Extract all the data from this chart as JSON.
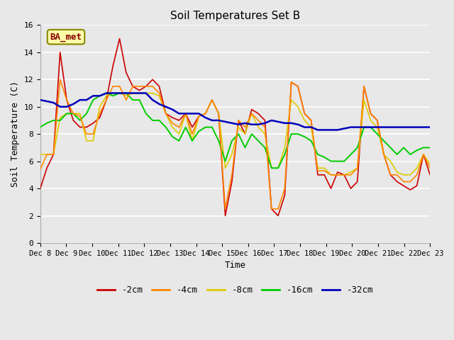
{
  "title": "Soil Temperatures Set B",
  "xlabel": "Time",
  "ylabel": "Soil Temperature (C)",
  "annotation": "BA_met",
  "ylim": [
    0,
    16
  ],
  "yticks": [
    0,
    2,
    4,
    6,
    8,
    10,
    12,
    14,
    16
  ],
  "bg_color": "#e8e8e8",
  "series": {
    "-2cm": {
      "color": "#cc0000",
      "lw": 1.2,
      "zorder": 3
    },
    "-4cm": {
      "color": "#ff8800",
      "lw": 1.2,
      "zorder": 4
    },
    "-8cm": {
      "color": "#ddcc00",
      "lw": 1.2,
      "zorder": 3
    },
    "-16cm": {
      "color": "#00cc00",
      "lw": 1.4,
      "zorder": 3
    },
    "-32cm": {
      "color": "#0000bb",
      "lw": 1.8,
      "zorder": 5
    }
  },
  "xtick_labels": [
    "Dec 8",
    "Dec 9",
    "Dec 10",
    "Dec 11",
    "Dec 12",
    "Dec 13",
    "Dec 14",
    "Dec 15",
    "Dec 16",
    "Dec 17",
    "Dec 18",
    "Dec 19",
    "Dec 20",
    "Dec 21",
    "Dec 22",
    "Dec 23"
  ],
  "data": {
    "-2cm": [
      4.0,
      5.5,
      6.5,
      14.0,
      10.5,
      9.0,
      8.5,
      8.5,
      8.8,
      9.2,
      10.5,
      13.0,
      15.0,
      12.5,
      11.5,
      11.2,
      11.5,
      12.0,
      11.5,
      9.5,
      9.2,
      9.0,
      9.5,
      8.5,
      9.3,
      9.5,
      10.5,
      9.5,
      2.0,
      4.5,
      9.0,
      8.0,
      9.8,
      9.5,
      9.0,
      2.5,
      2.0,
      3.5,
      11.8,
      11.5,
      9.5,
      9.0,
      5.0,
      5.0,
      4.0,
      5.2,
      5.0,
      4.0,
      4.5,
      11.5,
      9.5,
      9.0,
      6.5,
      5.0,
      4.5,
      4.2,
      3.9,
      4.2,
      6.5,
      5.0
    ],
    "-4cm": [
      5.4,
      6.5,
      6.5,
      12.0,
      10.5,
      9.5,
      9.3,
      8.0,
      8.0,
      9.5,
      10.5,
      11.5,
      11.5,
      10.5,
      11.5,
      11.5,
      11.5,
      11.5,
      11.0,
      9.5,
      8.8,
      8.5,
      9.5,
      8.0,
      9.3,
      9.5,
      10.5,
      9.5,
      2.5,
      5.0,
      9.0,
      8.5,
      9.5,
      9.0,
      8.5,
      2.5,
      2.5,
      4.0,
      11.8,
      11.5,
      9.5,
      9.0,
      5.3,
      5.3,
      5.0,
      5.0,
      5.0,
      5.0,
      5.5,
      11.5,
      9.5,
      9.0,
      6.5,
      5.0,
      5.0,
      4.5,
      4.5,
      5.0,
      6.5,
      5.5
    ],
    "-8cm": [
      6.5,
      6.5,
      6.5,
      9.2,
      9.5,
      9.5,
      9.5,
      7.5,
      7.5,
      10.0,
      10.8,
      11.0,
      11.0,
      10.8,
      11.0,
      11.0,
      11.0,
      11.0,
      10.8,
      9.5,
      8.5,
      8.0,
      9.5,
      7.5,
      9.3,
      9.5,
      10.5,
      9.5,
      5.5,
      6.5,
      8.5,
      8.0,
      9.5,
      8.5,
      8.0,
      5.5,
      5.5,
      7.0,
      10.5,
      10.0,
      9.0,
      8.5,
      5.5,
      5.5,
      5.0,
      5.0,
      5.0,
      5.2,
      5.5,
      10.5,
      9.0,
      8.5,
      6.5,
      6.0,
      5.2,
      5.0,
      5.0,
      5.5,
      6.5,
      5.8
    ],
    "-16cm": [
      8.5,
      8.8,
      9.0,
      9.0,
      9.5,
      9.5,
      9.0,
      9.5,
      10.5,
      10.8,
      11.0,
      10.8,
      11.0,
      11.0,
      10.5,
      10.5,
      9.5,
      9.0,
      9.0,
      8.5,
      7.8,
      7.5,
      8.5,
      7.5,
      8.2,
      8.5,
      8.5,
      7.5,
      6.0,
      7.5,
      8.0,
      7.0,
      8.0,
      7.5,
      7.0,
      5.5,
      5.5,
      6.5,
      8.0,
      8.0,
      7.8,
      7.5,
      6.5,
      6.3,
      6.0,
      6.0,
      6.0,
      6.5,
      7.0,
      8.5,
      8.5,
      8.0,
      7.5,
      7.0,
      6.5,
      7.0,
      6.5,
      6.8,
      7.0,
      7.0
    ],
    "-32cm": [
      10.5,
      10.4,
      10.3,
      10.0,
      10.0,
      10.2,
      10.5,
      10.5,
      10.8,
      10.8,
      11.0,
      11.0,
      11.0,
      11.0,
      11.0,
      11.0,
      11.0,
      10.5,
      10.2,
      10.0,
      9.8,
      9.5,
      9.5,
      9.5,
      9.5,
      9.2,
      9.0,
      9.0,
      8.9,
      8.8,
      8.7,
      8.8,
      8.7,
      8.7,
      8.8,
      9.0,
      8.9,
      8.8,
      8.8,
      8.7,
      8.5,
      8.5,
      8.3,
      8.3,
      8.3,
      8.3,
      8.4,
      8.5,
      8.5,
      8.5,
      8.5,
      8.5,
      8.5,
      8.5,
      8.5,
      8.5,
      8.5,
      8.5,
      8.5,
      8.5
    ]
  }
}
